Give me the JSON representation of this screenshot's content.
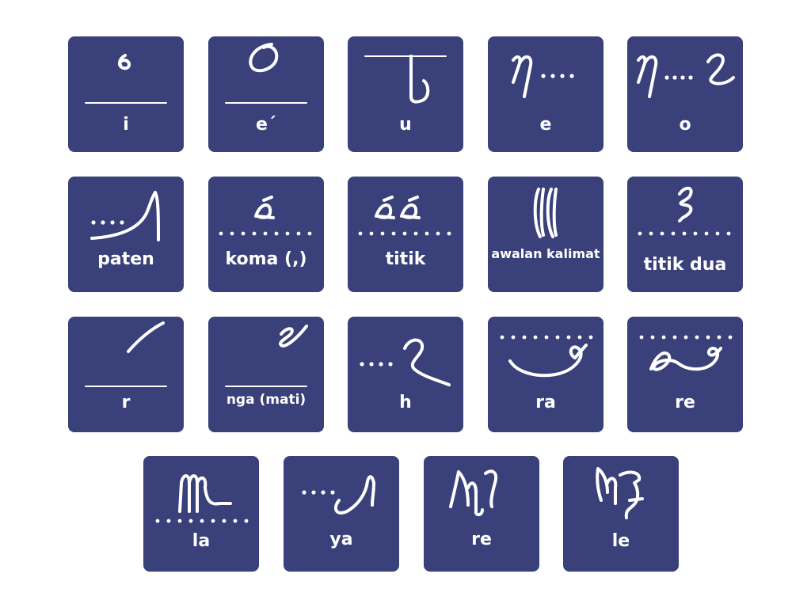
{
  "colors": {
    "tile": "#39407a",
    "glyph": "#ffffff",
    "background": "#ffffff"
  },
  "rows": [
    {
      "tiles": [
        {
          "label": "i"
        },
        {
          "label": "e´"
        },
        {
          "label": "u"
        },
        {
          "label": "e"
        },
        {
          "label": "o"
        }
      ]
    },
    {
      "tiles": [
        {
          "label": "paten"
        },
        {
          "label": "koma (,)"
        },
        {
          "label": "titik"
        },
        {
          "label": "awalan kalimat"
        },
        {
          "label": "titik dua"
        }
      ]
    },
    {
      "tiles": [
        {
          "label": "r"
        },
        {
          "label": "nga (mati)"
        },
        {
          "label": "h"
        },
        {
          "label": "ra"
        },
        {
          "label": "re"
        }
      ]
    },
    {
      "tiles": [
        {
          "label": "la"
        },
        {
          "label": "ya"
        },
        {
          "label": "re"
        },
        {
          "label": "le"
        }
      ]
    }
  ]
}
